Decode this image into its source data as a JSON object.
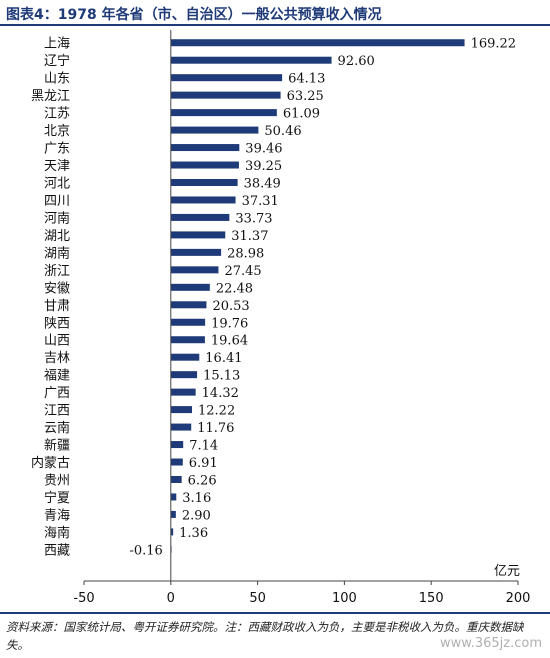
{
  "header": {
    "title": "图表4：1978 年各省（市、自治区）一般公共预算收入情况"
  },
  "chart_data": {
    "type": "bar",
    "orientation": "horizontal",
    "categories": [
      "上海",
      "辽宁",
      "山东",
      "黑龙江",
      "江苏",
      "北京",
      "广东",
      "天津",
      "河北",
      "四川",
      "河南",
      "湖北",
      "湖南",
      "浙江",
      "安徽",
      "甘肃",
      "陕西",
      "山西",
      "吉林",
      "福建",
      "广西",
      "江西",
      "云南",
      "新疆",
      "内蒙古",
      "贵州",
      "宁夏",
      "青海",
      "海南",
      "西藏"
    ],
    "values": [
      169.22,
      92.6,
      64.13,
      63.25,
      61.09,
      50.46,
      39.46,
      39.25,
      38.49,
      37.31,
      33.73,
      31.37,
      28.98,
      27.45,
      22.48,
      20.53,
      19.76,
      19.64,
      16.41,
      15.13,
      14.32,
      12.22,
      11.76,
      7.14,
      6.91,
      6.26,
      3.16,
      2.9,
      1.36,
      -0.16
    ],
    "value_labels": [
      "169.22",
      "92.60",
      "64.13",
      "63.25",
      "61.09",
      "50.46",
      "39.46",
      "39.25",
      "38.49",
      "37.31",
      "33.73",
      "31.37",
      "28.98",
      "27.45",
      "22.48",
      "20.53",
      "19.76",
      "19.64",
      "16.41",
      "15.13",
      "14.32",
      "12.22",
      "11.76",
      "7.14",
      "6.91",
      "6.26",
      "3.16",
      "2.90",
      "1.36",
      "-0.16"
    ],
    "xlim": [
      -50,
      200
    ],
    "xticks": [
      "-50",
      "0",
      "50",
      "100",
      "150",
      "200"
    ],
    "xtick_values": [
      -50,
      0,
      50,
      100,
      150,
      200
    ],
    "unit_label": "亿元",
    "bar_color": "#1f3a78",
    "grid": false,
    "legend": "none"
  },
  "footer": {
    "source": "资料来源：国家统计局、粤开证券研究院。注：西藏财政收入为负，主要是非税收入为负。重庆数据缺失。",
    "watermark": "www.365jz.com"
  }
}
